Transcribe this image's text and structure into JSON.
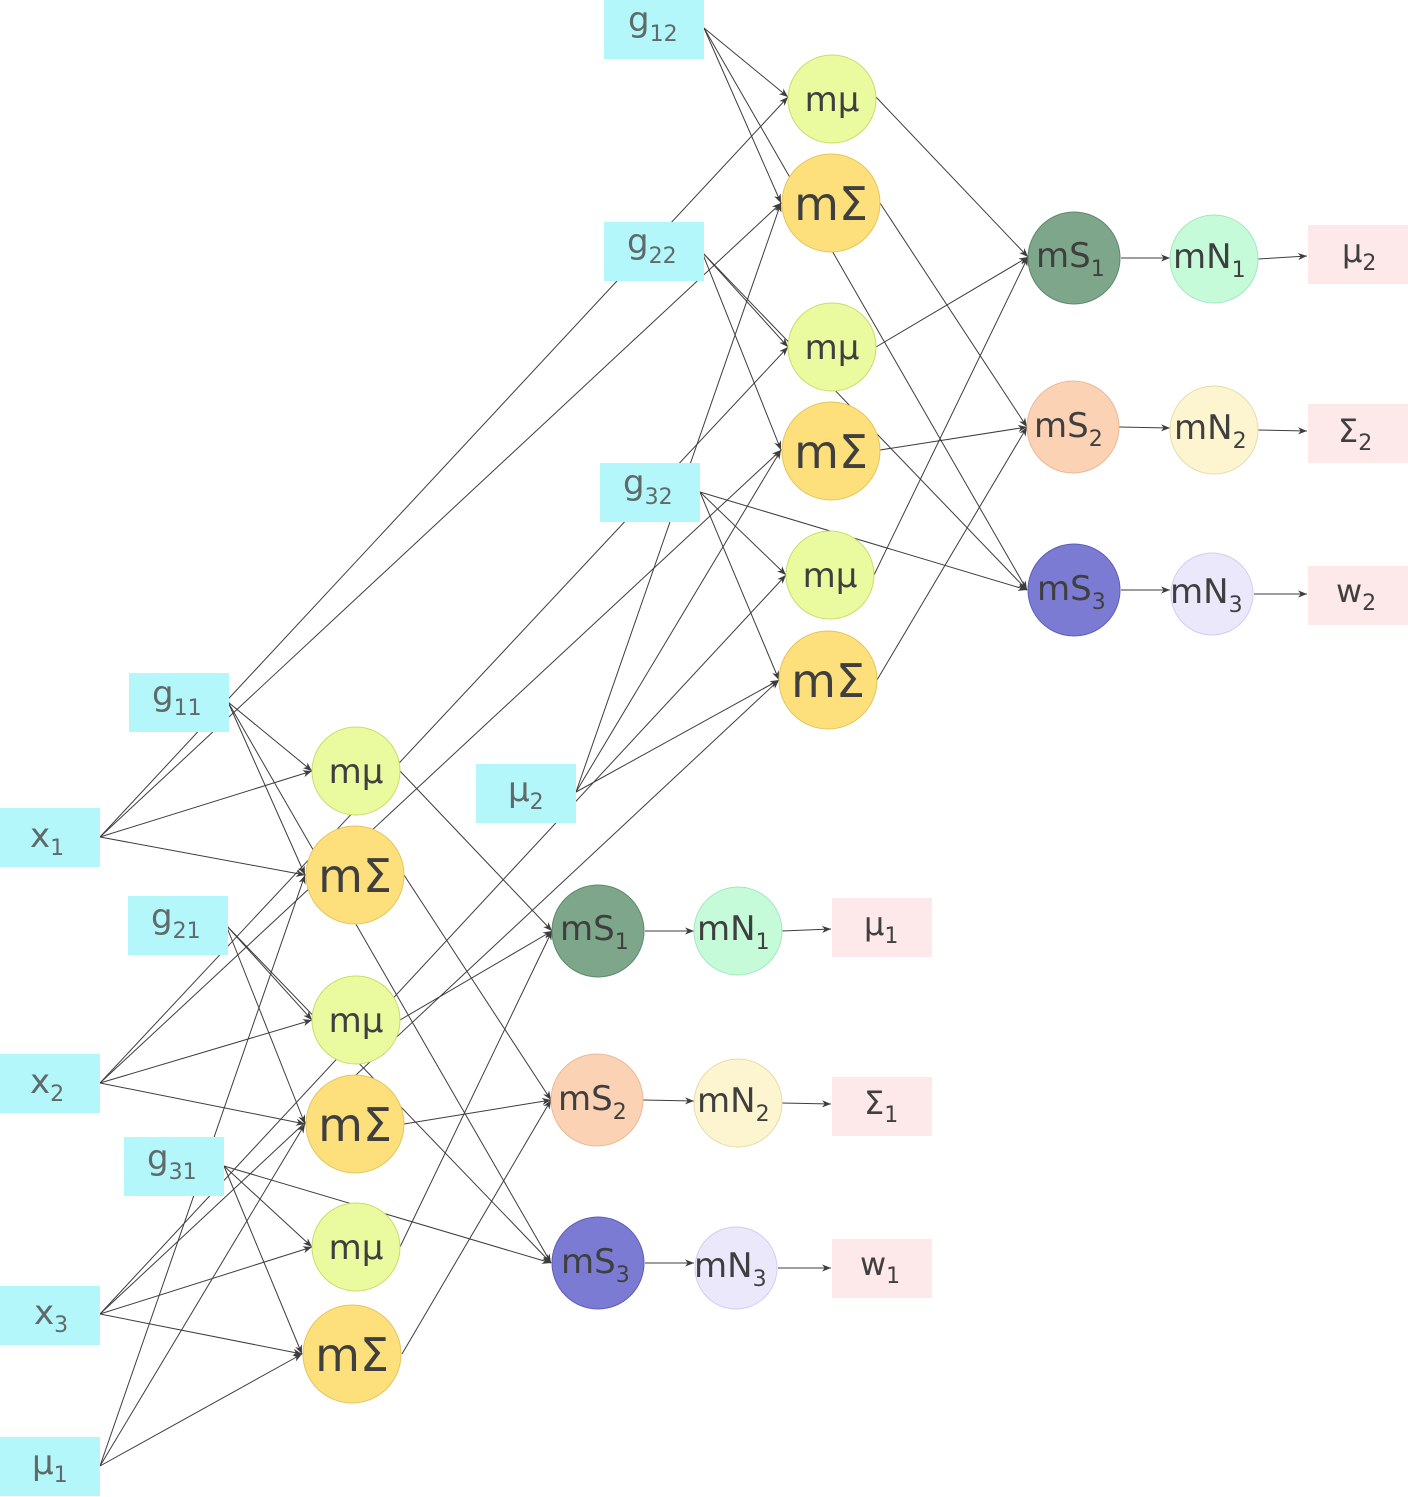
{
  "labels": {
    "x1": "x",
    "x1_sub": "1",
    "x2": "x",
    "x2_sub": "2",
    "x3": "x",
    "x3_sub": "3",
    "mu1_in": "μ",
    "mu1_in_sub": "1",
    "mu2_in": "μ",
    "mu2_in_sub": "2",
    "g11": "g",
    "g11_sub": "11",
    "g21": "g",
    "g21_sub": "21",
    "g31": "g",
    "g31_sub": "31",
    "g12": "g",
    "g12_sub": "12",
    "g22": "g",
    "g22_sub": "22",
    "g32": "g",
    "g32_sub": "32",
    "mmu": "mμ",
    "msig": "mΣ",
    "mS": "mS",
    "mN": "mN",
    "sub1": "1",
    "sub2": "2",
    "sub3": "3",
    "out_mu1": "μ",
    "out_mu1_sub": "1",
    "out_sig1": "Σ",
    "out_sig1_sub": "1",
    "out_w1": "w",
    "out_w1_sub": "1",
    "out_mu2": "μ",
    "out_mu2_sub": "2",
    "out_sig2": "Σ",
    "out_sig2_sub": "2",
    "out_w2": "w",
    "out_w2_sub": "2"
  }
}
